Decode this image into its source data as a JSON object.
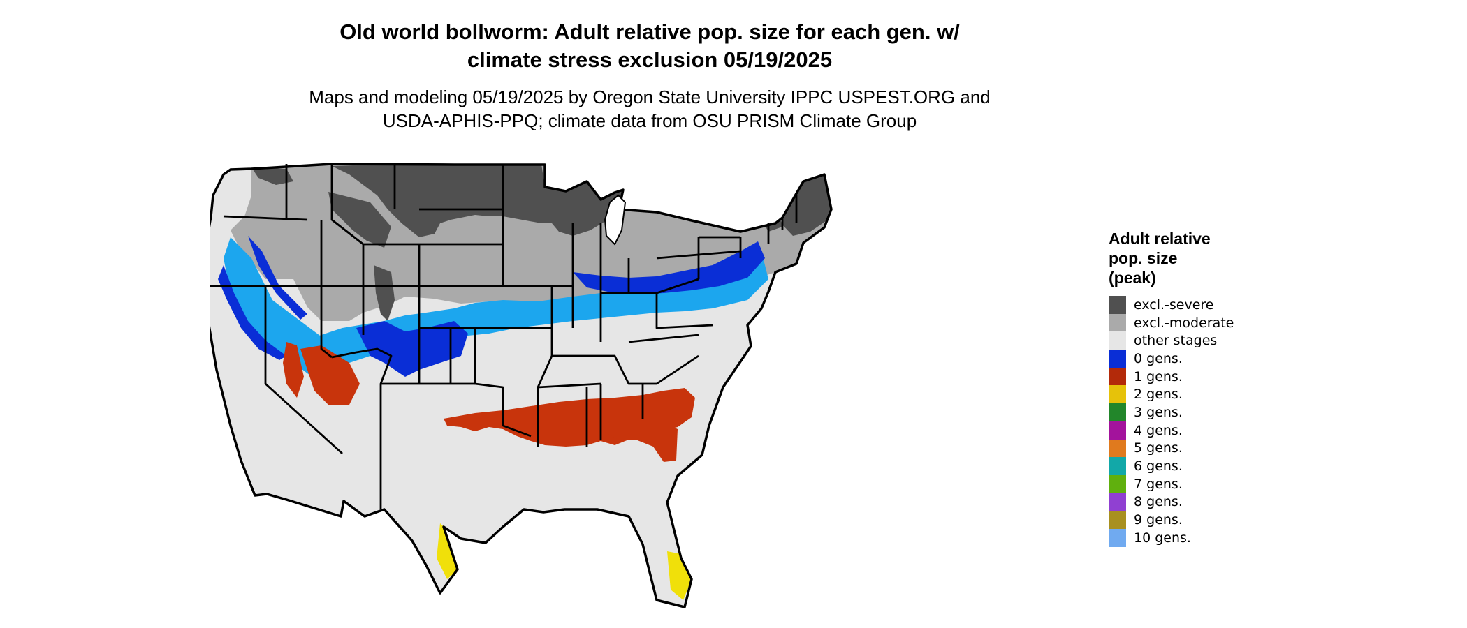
{
  "title_line1": "Old world bollworm: Adult relative pop. size for each gen. w/",
  "title_line2": "climate stress exclusion 05/19/2025",
  "subtitle_line1": "Maps and modeling 05/19/2025 by Oregon State University IPPC USPEST.ORG and",
  "subtitle_line2": "USDA-APHIS-PPQ; climate data from OSU PRISM Climate Group",
  "legend": {
    "title": "Adult relative\npop. size\n(peak)",
    "items": [
      {
        "label": "excl.-severe",
        "color": "#505050"
      },
      {
        "label": "excl.-moderate",
        "color": "#aaaaaa"
      },
      {
        "label": "other stages",
        "color": "#e6e6e6"
      },
      {
        "label": "0 gens.",
        "color": "#0a2ed6"
      },
      {
        "label": "1 gens.",
        "color": "#b32a0a"
      },
      {
        "label": "2 gens.",
        "color": "#e6c20a"
      },
      {
        "label": "3 gens.",
        "color": "#22862a"
      },
      {
        "label": "4 gens.",
        "color": "#a3139c"
      },
      {
        "label": "5 gens.",
        "color": "#e07a1e"
      },
      {
        "label": "6 gens.",
        "color": "#12a8a8"
      },
      {
        "label": "7 gens.",
        "color": "#60b00e"
      },
      {
        "label": "8 gens.",
        "color": "#9040d2"
      },
      {
        "label": "9 gens.",
        "color": "#a89020"
      },
      {
        "label": "10 gens.",
        "color": "#70aaf0"
      }
    ]
  },
  "map": {
    "region": "Contiguous United States",
    "colors": {
      "severe": "#505050",
      "moderate": "#aaaaaa",
      "other": "#e6e6e6",
      "gen0_dark": "#0a2ed6",
      "gen0_light": "#1ca6ee",
      "gen1": "#c8340c",
      "gen2": "#f0e00a",
      "border": "#000000"
    }
  }
}
